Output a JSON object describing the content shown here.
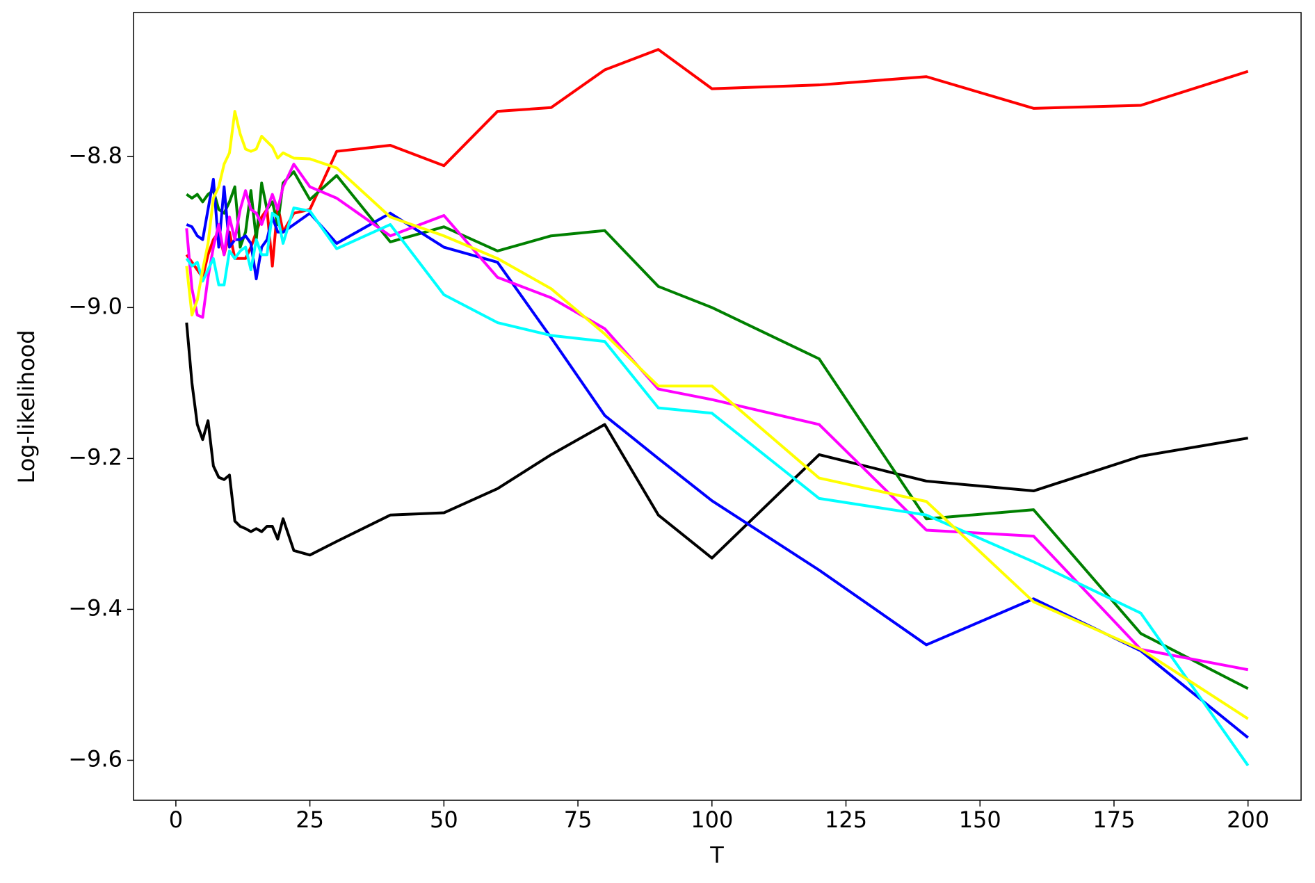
{
  "chart_data": {
    "type": "line",
    "xlabel": "T",
    "ylabel": "Log-likelihood",
    "x": [
      2,
      3,
      4,
      5,
      6,
      7,
      8,
      9,
      10,
      11,
      12,
      13,
      14,
      15,
      16,
      17,
      18,
      19,
      20,
      22,
      25,
      30,
      40,
      50,
      60,
      70,
      80,
      90,
      100,
      120,
      140,
      160,
      180,
      200
    ],
    "xlim": [
      -7.9,
      209.9
    ],
    "ylim": [
      -9.653,
      -8.609
    ],
    "xticks": [
      0,
      25,
      50,
      75,
      100,
      125,
      150,
      175,
      200
    ],
    "yticks": [
      {
        "value": -9.6,
        "label": "−9.6"
      },
      {
        "value": -9.4,
        "label": "−9.4"
      },
      {
        "value": -9.2,
        "label": "−9.2"
      },
      {
        "value": -9.0,
        "label": "−9.0"
      },
      {
        "value": -8.8,
        "label": "−8.8"
      }
    ],
    "series": [
      {
        "color": "#000000",
        "values": [
          -9.02,
          -9.1,
          -9.155,
          -9.175,
          -9.15,
          -9.21,
          -9.225,
          -9.228,
          -9.222,
          -9.283,
          -9.29,
          -9.293,
          -9.297,
          -9.293,
          -9.297,
          -9.29,
          -9.29,
          -9.307,
          -9.28,
          -9.322,
          -9.328,
          -9.31,
          -9.275,
          -9.272,
          -9.24,
          -9.195,
          -9.155,
          -9.275,
          -9.332,
          -9.195,
          -9.23,
          -9.243,
          -9.197,
          -9.173
        ]
      },
      {
        "color": "#ff0000",
        "values": [
          -8.93,
          -8.94,
          -8.95,
          -8.96,
          -8.93,
          -8.91,
          -8.9,
          -8.93,
          -8.9,
          -8.935,
          -8.935,
          -8.935,
          -8.92,
          -8.9,
          -8.88,
          -8.87,
          -8.945,
          -8.865,
          -8.9,
          -8.875,
          -8.87,
          -8.793,
          -8.785,
          -8.812,
          -8.74,
          -8.735,
          -8.685,
          -8.658,
          -8.71,
          -8.705,
          -8.694,
          -8.736,
          -8.732,
          -8.687
        ]
      },
      {
        "color": "#008000",
        "values": [
          -8.85,
          -8.855,
          -8.85,
          -8.86,
          -8.85,
          -8.845,
          -8.87,
          -8.875,
          -8.86,
          -8.84,
          -8.92,
          -8.9,
          -8.845,
          -8.91,
          -8.835,
          -8.87,
          -8.86,
          -8.89,
          -8.835,
          -8.82,
          -8.857,
          -8.825,
          -8.913,
          -8.893,
          -8.925,
          -8.905,
          -8.898,
          -8.972,
          -9.0,
          -9.068,
          -9.28,
          -9.268,
          -9.432,
          -9.505
        ]
      },
      {
        "color": "#0000ff",
        "values": [
          -8.89,
          -8.893,
          -8.905,
          -8.91,
          -8.87,
          -8.83,
          -8.92,
          -8.84,
          -8.92,
          -8.91,
          -8.91,
          -8.905,
          -8.915,
          -8.962,
          -8.92,
          -8.91,
          -8.88,
          -8.9,
          -8.9,
          -8.89,
          -8.875,
          -8.915,
          -8.875,
          -8.92,
          -8.94,
          -9.04,
          -9.143,
          -9.2,
          -9.256,
          -9.348,
          -9.447,
          -9.386,
          -9.455,
          -9.57
        ]
      },
      {
        "color": "#ff00ff",
        "values": [
          -8.895,
          -8.975,
          -9.01,
          -9.013,
          -8.96,
          -8.92,
          -8.89,
          -8.93,
          -8.88,
          -8.91,
          -8.87,
          -8.845,
          -8.87,
          -8.875,
          -8.89,
          -8.87,
          -8.85,
          -8.87,
          -8.84,
          -8.81,
          -8.84,
          -8.855,
          -8.905,
          -8.878,
          -8.96,
          -8.987,
          -9.028,
          -9.108,
          -9.122,
          -9.155,
          -9.295,
          -9.303,
          -9.453,
          -9.48
        ]
      },
      {
        "color": "#00ffff",
        "values": [
          -8.935,
          -8.945,
          -8.94,
          -8.965,
          -8.95,
          -8.935,
          -8.97,
          -8.97,
          -8.925,
          -8.935,
          -8.925,
          -8.92,
          -8.95,
          -8.91,
          -8.93,
          -8.93,
          -8.875,
          -8.88,
          -8.915,
          -8.868,
          -8.872,
          -8.922,
          -8.89,
          -8.983,
          -9.02,
          -9.037,
          -9.045,
          -9.133,
          -9.14,
          -9.253,
          -9.275,
          -9.337,
          -9.405,
          -9.607
        ]
      },
      {
        "color": "#ffff00",
        "values": [
          -8.945,
          -9.01,
          -8.99,
          -8.95,
          -8.915,
          -8.855,
          -8.84,
          -8.81,
          -8.795,
          -8.74,
          -8.77,
          -8.79,
          -8.793,
          -8.79,
          -8.773,
          -8.78,
          -8.787,
          -8.802,
          -8.795,
          -8.802,
          -8.803,
          -8.815,
          -8.88,
          -8.905,
          -8.935,
          -8.975,
          -9.035,
          -9.104,
          -9.104,
          -9.226,
          -9.257,
          -9.39,
          -9.453,
          -9.545
        ]
      }
    ]
  }
}
